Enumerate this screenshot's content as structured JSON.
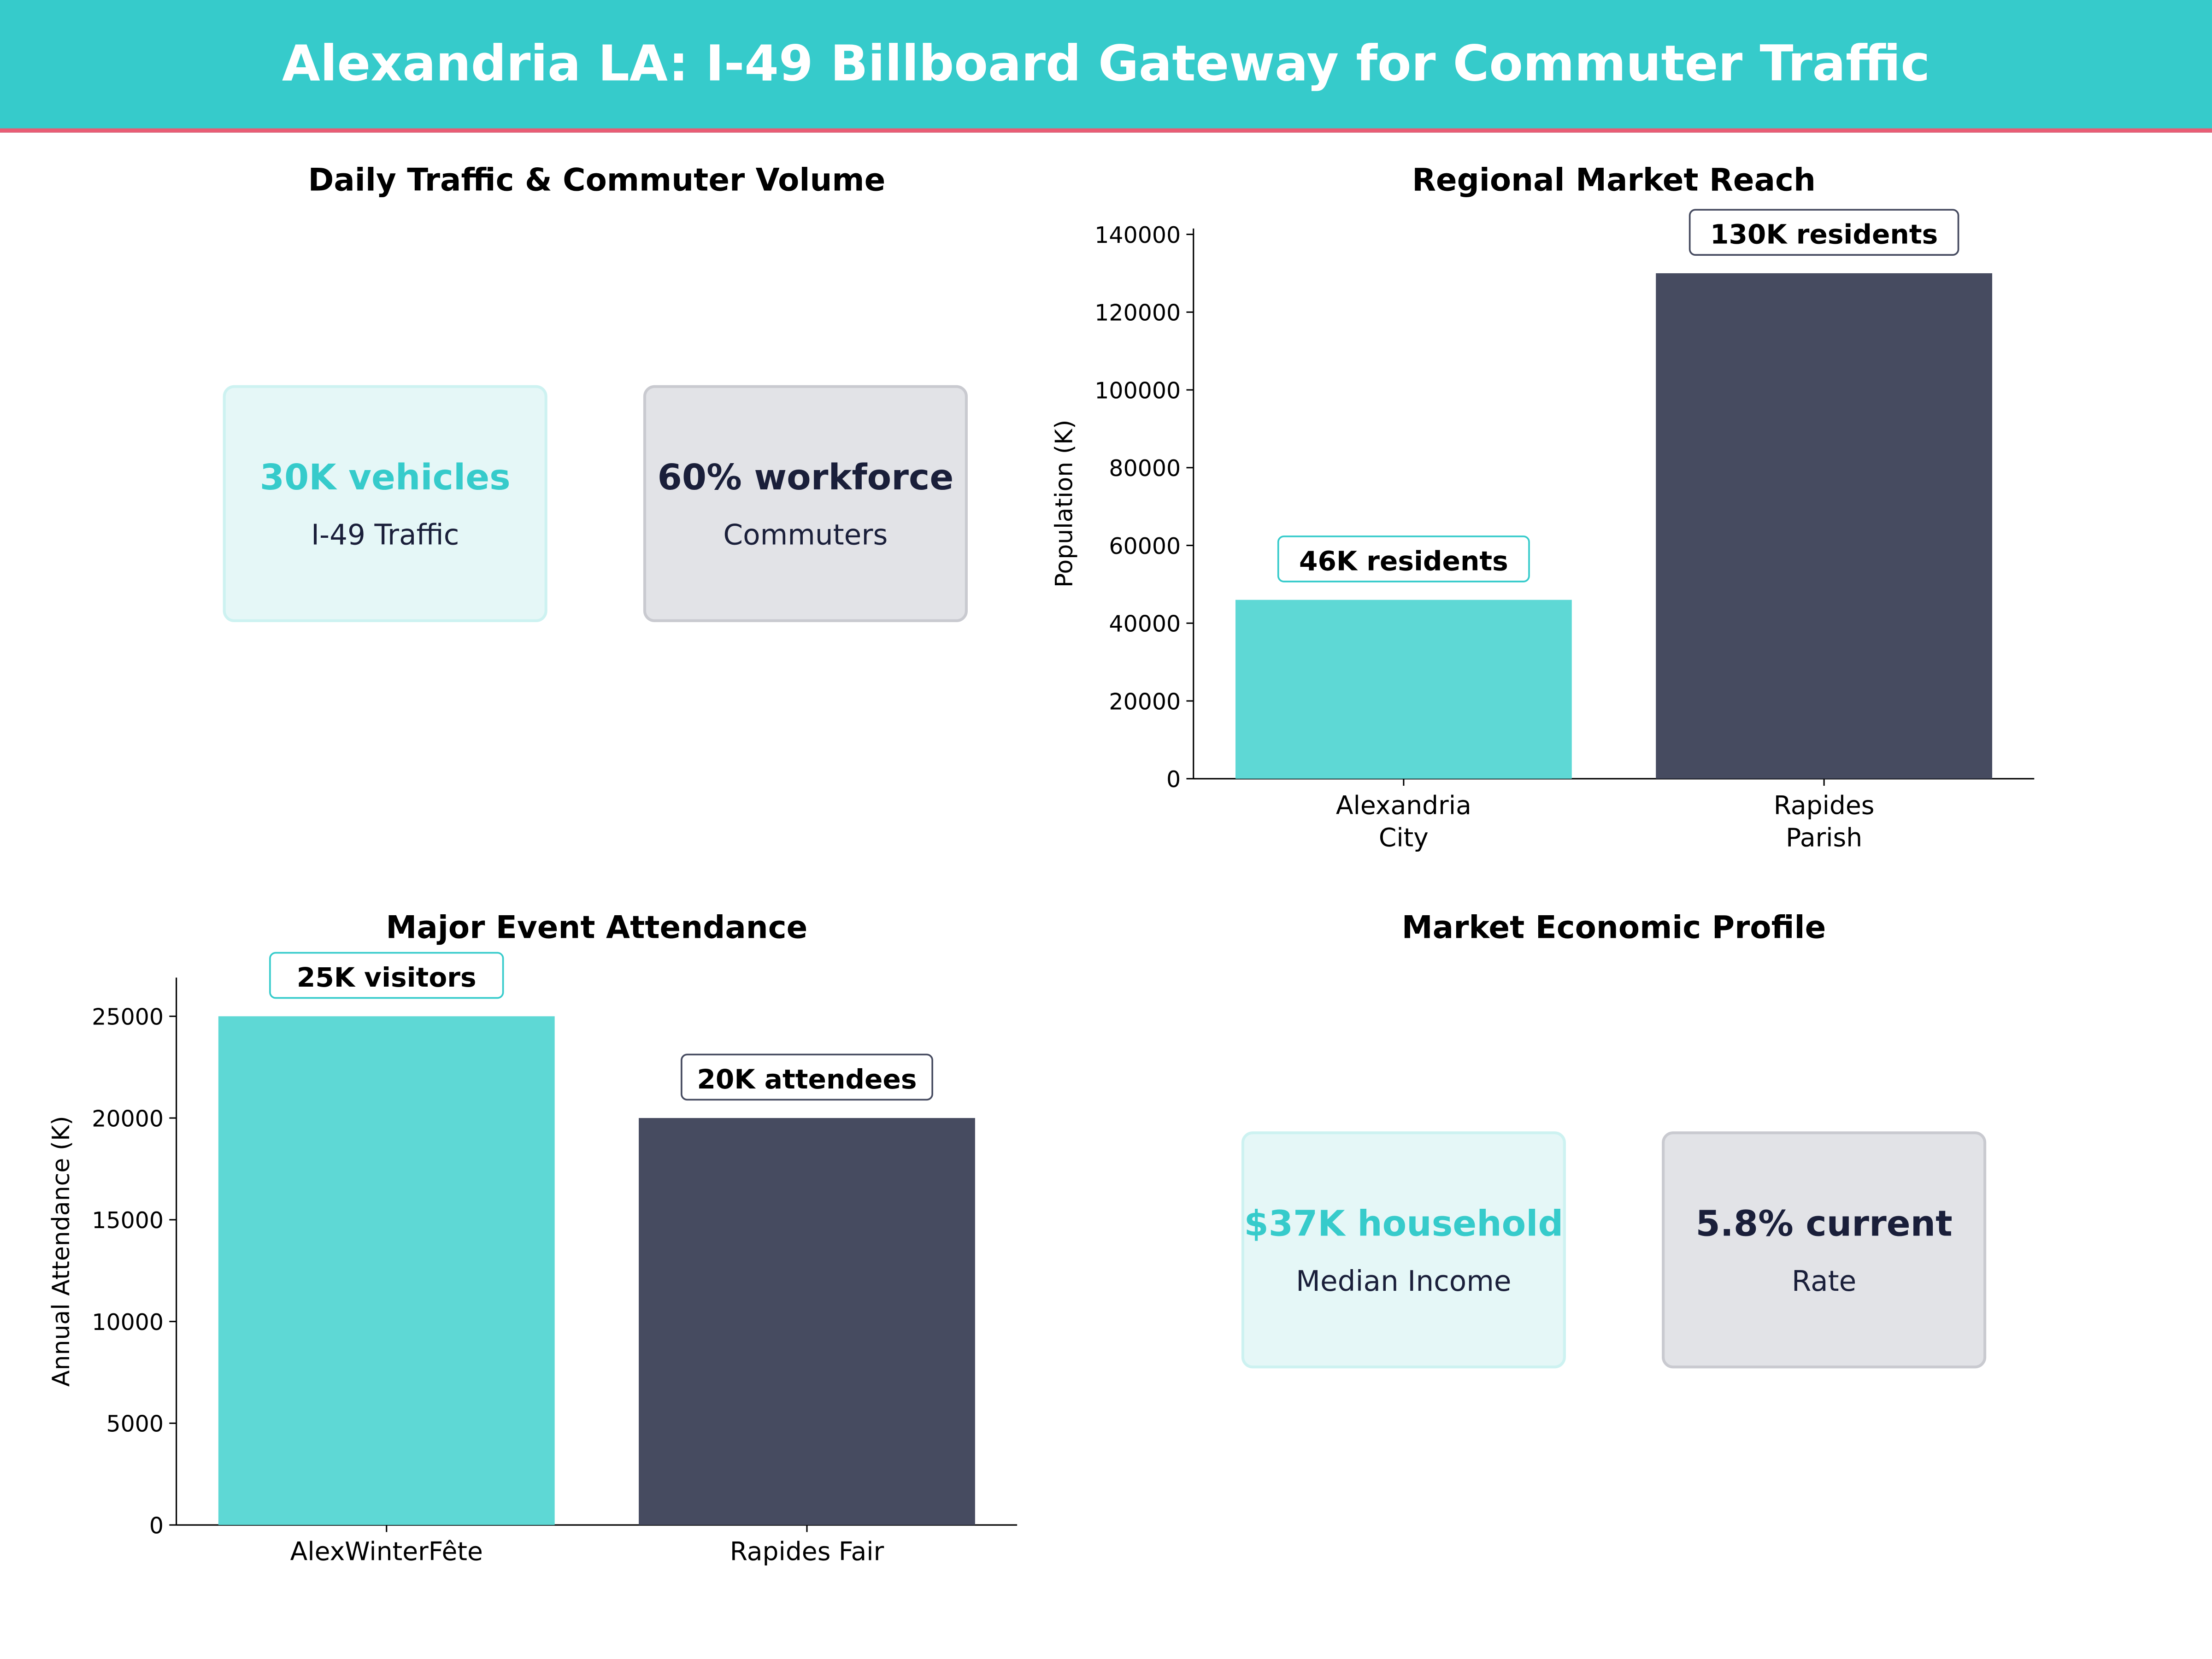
{
  "header": {
    "title": "Alexandria LA: I-49 Billboard Gateway for Commuter Traffic"
  },
  "colors": {
    "teal": "#36CBCB",
    "teal_bar": "#5ED8D5",
    "dark": "#464B60",
    "accent_line": "#E85D75",
    "card_teal_bg": "#E5F7F7",
    "card_grey_bg": "#E2E3E7",
    "text_dark": "#1A1F3A"
  },
  "traffic_panel": {
    "title": "Daily Traffic & Commuter Volume",
    "cards": [
      {
        "value": "30K vehicles",
        "label": "I-49 Traffic"
      },
      {
        "value": "60% workforce",
        "label": "Commuters"
      }
    ]
  },
  "economic_panel": {
    "title": "Market Economic Profile",
    "cards": [
      {
        "value": "$37K household",
        "label": "Median Income"
      },
      {
        "value": "5.8% current",
        "label": "Rate"
      }
    ]
  },
  "chart_data": [
    {
      "type": "bar",
      "title": "Regional Market Reach",
      "ylabel": "Population (K)",
      "xlabel": "",
      "categories": [
        "Alexandria\nCity",
        "Rapides\nParish"
      ],
      "values": [
        46000,
        130000
      ],
      "data_labels": [
        "46K residents",
        "130K residents"
      ],
      "yticks": [
        0,
        20000,
        40000,
        60000,
        80000,
        100000,
        120000,
        140000
      ],
      "ylim": [
        0,
        141500
      ],
      "grid": false,
      "bar_colors": [
        "#5ED8D5",
        "#464B60"
      ]
    },
    {
      "type": "bar",
      "title": "Major Event Attendance",
      "ylabel": "Annual Attendance (K)",
      "xlabel": "",
      "categories": [
        "AlexWinterFête",
        "Rapides Fair"
      ],
      "values": [
        25000,
        20000
      ],
      "data_labels": [
        "25K visitors",
        "20K attendees"
      ],
      "yticks": [
        0,
        5000,
        10000,
        15000,
        20000,
        25000
      ],
      "ylim": [
        0,
        26900
      ],
      "grid": false,
      "bar_colors": [
        "#5ED8D5",
        "#464B60"
      ]
    }
  ]
}
